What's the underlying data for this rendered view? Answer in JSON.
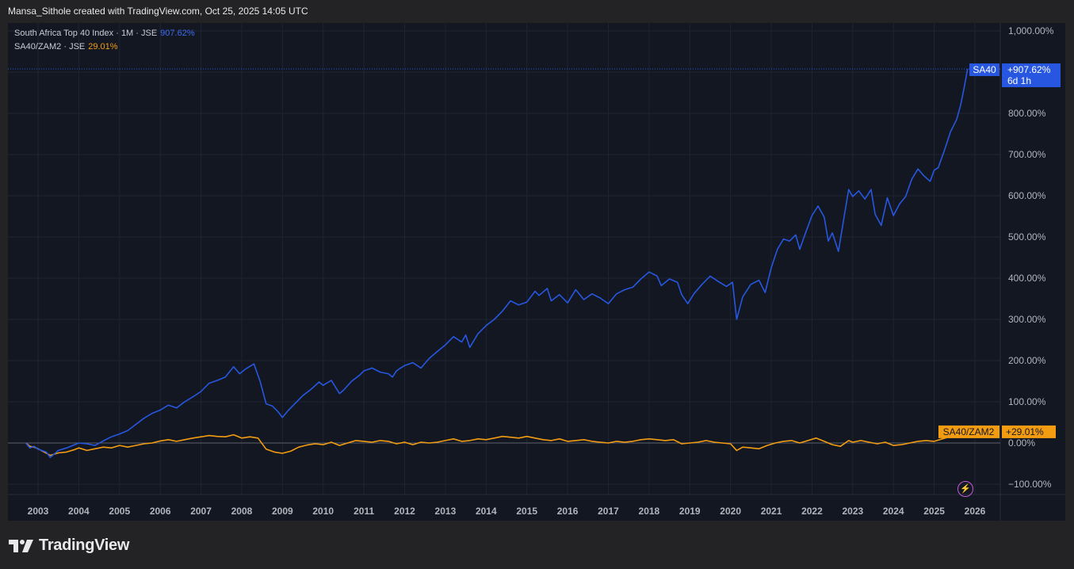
{
  "header": {
    "attribution": "Mansa_Sithole created with TradingView.com, Oct 25, 2025 14:05 UTC"
  },
  "legend": {
    "primary": {
      "name": "South Africa Top 40 Index · 1M · JSE",
      "value": "907.62%"
    },
    "secondary": {
      "name": "SA40/ZAM2 · JSE",
      "value": "29.01%"
    }
  },
  "badges": {
    "sa40": {
      "ticker": "SA40",
      "change": "+907.62%",
      "countdown": "6d 1h"
    },
    "ratio": {
      "ticker": "SA40/ZAM2",
      "change": "+29.01%"
    }
  },
  "footer": {
    "brand": "TradingView"
  },
  "colors": {
    "background": "#131722",
    "sa40": "#2757e0",
    "ratio": "#f39c12",
    "grid": "#232838"
  },
  "chart_data": {
    "type": "line",
    "y_axis_ticks": [
      "1,000.00%",
      "800.00%",
      "700.00%",
      "600.00%",
      "500.00%",
      "400.00%",
      "300.00%",
      "200.00%",
      "100.00%",
      "0.00%",
      "−100.00%"
    ],
    "y_axis_values": [
      1000,
      800,
      700,
      600,
      500,
      400,
      300,
      200,
      100,
      0,
      -100
    ],
    "x_axis_ticks": [
      "2003",
      "2004",
      "2005",
      "2006",
      "2007",
      "2008",
      "2009",
      "2010",
      "2011",
      "2012",
      "2013",
      "2014",
      "2015",
      "2016",
      "2017",
      "2018",
      "2019",
      "2020",
      "2021",
      "2022",
      "2023",
      "2024",
      "2025",
      "2026"
    ],
    "ylim": [
      -100,
      1000
    ],
    "xlim": [
      2002.65,
      2026.45
    ],
    "series": [
      {
        "name": "South Africa Top 40 Index",
        "color": "#2757e0",
        "points": [
          [
            2002.7,
            0
          ],
          [
            2002.8,
            -12
          ],
          [
            2002.9,
            -8
          ],
          [
            2003.0,
            -15
          ],
          [
            2003.2,
            -22
          ],
          [
            2003.3,
            -35
          ],
          [
            2003.5,
            -18
          ],
          [
            2003.7,
            -12
          ],
          [
            2003.9,
            -4
          ],
          [
            2004.0,
            0
          ],
          [
            2004.2,
            -2
          ],
          [
            2004.4,
            -6
          ],
          [
            2004.6,
            5
          ],
          [
            2004.8,
            15
          ],
          [
            2005.0,
            22
          ],
          [
            2005.2,
            30
          ],
          [
            2005.4,
            45
          ],
          [
            2005.6,
            60
          ],
          [
            2005.8,
            72
          ],
          [
            2006.0,
            80
          ],
          [
            2006.2,
            92
          ],
          [
            2006.4,
            85
          ],
          [
            2006.6,
            100
          ],
          [
            2006.8,
            112
          ],
          [
            2007.0,
            125
          ],
          [
            2007.2,
            145
          ],
          [
            2007.4,
            152
          ],
          [
            2007.6,
            160
          ],
          [
            2007.8,
            185
          ],
          [
            2007.95,
            168
          ],
          [
            2008.1,
            180
          ],
          [
            2008.3,
            192
          ],
          [
            2008.45,
            150
          ],
          [
            2008.6,
            95
          ],
          [
            2008.75,
            90
          ],
          [
            2008.9,
            75
          ],
          [
            2009.0,
            62
          ],
          [
            2009.15,
            80
          ],
          [
            2009.3,
            95
          ],
          [
            2009.5,
            115
          ],
          [
            2009.7,
            130
          ],
          [
            2009.9,
            148
          ],
          [
            2010.0,
            140
          ],
          [
            2010.2,
            152
          ],
          [
            2010.4,
            120
          ],
          [
            2010.5,
            128
          ],
          [
            2010.7,
            150
          ],
          [
            2010.9,
            165
          ],
          [
            2011.0,
            175
          ],
          [
            2011.2,
            182
          ],
          [
            2011.4,
            172
          ],
          [
            2011.6,
            168
          ],
          [
            2011.7,
            160
          ],
          [
            2011.8,
            175
          ],
          [
            2011.9,
            182
          ],
          [
            2012.0,
            188
          ],
          [
            2012.2,
            195
          ],
          [
            2012.4,
            182
          ],
          [
            2012.6,
            205
          ],
          [
            2012.8,
            222
          ],
          [
            2013.0,
            238
          ],
          [
            2013.2,
            258
          ],
          [
            2013.4,
            245
          ],
          [
            2013.5,
            262
          ],
          [
            2013.6,
            232
          ],
          [
            2013.8,
            265
          ],
          [
            2014.0,
            285
          ],
          [
            2014.2,
            300
          ],
          [
            2014.4,
            320
          ],
          [
            2014.6,
            345
          ],
          [
            2014.8,
            335
          ],
          [
            2015.0,
            342
          ],
          [
            2015.2,
            368
          ],
          [
            2015.3,
            358
          ],
          [
            2015.5,
            375
          ],
          [
            2015.6,
            345
          ],
          [
            2015.8,
            360
          ],
          [
            2016.0,
            340
          ],
          [
            2016.2,
            372
          ],
          [
            2016.4,
            348
          ],
          [
            2016.6,
            362
          ],
          [
            2016.8,
            352
          ],
          [
            2017.0,
            338
          ],
          [
            2017.2,
            362
          ],
          [
            2017.4,
            372
          ],
          [
            2017.6,
            378
          ],
          [
            2017.8,
            398
          ],
          [
            2018.0,
            415
          ],
          [
            2018.2,
            405
          ],
          [
            2018.3,
            382
          ],
          [
            2018.5,
            398
          ],
          [
            2018.7,
            390
          ],
          [
            2018.8,
            360
          ],
          [
            2018.95,
            338
          ],
          [
            2019.1,
            362
          ],
          [
            2019.3,
            385
          ],
          [
            2019.5,
            405
          ],
          [
            2019.7,
            392
          ],
          [
            2019.9,
            380
          ],
          [
            2020.05,
            390
          ],
          [
            2020.15,
            300
          ],
          [
            2020.3,
            355
          ],
          [
            2020.5,
            385
          ],
          [
            2020.7,
            395
          ],
          [
            2020.85,
            365
          ],
          [
            2021.0,
            425
          ],
          [
            2021.15,
            470
          ],
          [
            2021.3,
            495
          ],
          [
            2021.45,
            490
          ],
          [
            2021.6,
            505
          ],
          [
            2021.7,
            470
          ],
          [
            2021.85,
            512
          ],
          [
            2022.0,
            552
          ],
          [
            2022.15,
            575
          ],
          [
            2022.3,
            548
          ],
          [
            2022.4,
            490
          ],
          [
            2022.5,
            510
          ],
          [
            2022.65,
            465
          ],
          [
            2022.8,
            555
          ],
          [
            2022.9,
            615
          ],
          [
            2023.0,
            598
          ],
          [
            2023.15,
            612
          ],
          [
            2023.3,
            592
          ],
          [
            2023.45,
            615
          ],
          [
            2023.55,
            555
          ],
          [
            2023.7,
            528
          ],
          [
            2023.85,
            595
          ],
          [
            2024.0,
            552
          ],
          [
            2024.15,
            580
          ],
          [
            2024.3,
            598
          ],
          [
            2024.45,
            640
          ],
          [
            2024.6,
            665
          ],
          [
            2024.75,
            648
          ],
          [
            2024.9,
            635
          ],
          [
            2025.0,
            662
          ],
          [
            2025.1,
            668
          ],
          [
            2025.25,
            710
          ],
          [
            2025.4,
            755
          ],
          [
            2025.55,
            785
          ],
          [
            2025.65,
            820
          ],
          [
            2025.75,
            870
          ],
          [
            2025.82,
            907.62
          ]
        ]
      },
      {
        "name": "SA40/ZAM2",
        "color": "#f39c12",
        "points": [
          [
            2002.7,
            0
          ],
          [
            2002.8,
            -8
          ],
          [
            2002.9,
            -10
          ],
          [
            2003.0,
            -14
          ],
          [
            2003.15,
            -22
          ],
          [
            2003.3,
            -30
          ],
          [
            2003.5,
            -24
          ],
          [
            2003.7,
            -22
          ],
          [
            2003.9,
            -16
          ],
          [
            2004.0,
            -12
          ],
          [
            2004.2,
            -18
          ],
          [
            2004.4,
            -14
          ],
          [
            2004.6,
            -10
          ],
          [
            2004.8,
            -12
          ],
          [
            2005.0,
            -6
          ],
          [
            2005.2,
            -10
          ],
          [
            2005.4,
            -6
          ],
          [
            2005.6,
            -2
          ],
          [
            2005.8,
            0
          ],
          [
            2006.0,
            5
          ],
          [
            2006.2,
            8
          ],
          [
            2006.4,
            4
          ],
          [
            2006.6,
            8
          ],
          [
            2006.8,
            12
          ],
          [
            2007.0,
            15
          ],
          [
            2007.2,
            18
          ],
          [
            2007.4,
            16
          ],
          [
            2007.6,
            15
          ],
          [
            2007.8,
            20
          ],
          [
            2008.0,
            12
          ],
          [
            2008.2,
            15
          ],
          [
            2008.4,
            12
          ],
          [
            2008.6,
            -15
          ],
          [
            2008.8,
            -22
          ],
          [
            2009.0,
            -25
          ],
          [
            2009.2,
            -20
          ],
          [
            2009.4,
            -10
          ],
          [
            2009.6,
            -5
          ],
          [
            2009.8,
            -2
          ],
          [
            2010.0,
            -4
          ],
          [
            2010.2,
            2
          ],
          [
            2010.4,
            -6
          ],
          [
            2010.6,
            0
          ],
          [
            2010.8,
            6
          ],
          [
            2011.0,
            4
          ],
          [
            2011.2,
            2
          ],
          [
            2011.4,
            6
          ],
          [
            2011.6,
            4
          ],
          [
            2011.8,
            -2
          ],
          [
            2012.0,
            2
          ],
          [
            2012.2,
            -4
          ],
          [
            2012.4,
            2
          ],
          [
            2012.6,
            0
          ],
          [
            2012.8,
            2
          ],
          [
            2013.0,
            6
          ],
          [
            2013.2,
            10
          ],
          [
            2013.4,
            4
          ],
          [
            2013.6,
            6
          ],
          [
            2013.8,
            10
          ],
          [
            2014.0,
            8
          ],
          [
            2014.2,
            12
          ],
          [
            2014.4,
            16
          ],
          [
            2014.6,
            14
          ],
          [
            2014.8,
            12
          ],
          [
            2015.0,
            16
          ],
          [
            2015.2,
            12
          ],
          [
            2015.4,
            8
          ],
          [
            2015.6,
            6
          ],
          [
            2015.8,
            10
          ],
          [
            2016.0,
            4
          ],
          [
            2016.2,
            6
          ],
          [
            2016.4,
            8
          ],
          [
            2016.6,
            4
          ],
          [
            2016.8,
            2
          ],
          [
            2017.0,
            0
          ],
          [
            2017.2,
            4
          ],
          [
            2017.4,
            2
          ],
          [
            2017.6,
            4
          ],
          [
            2017.8,
            8
          ],
          [
            2018.0,
            10
          ],
          [
            2018.2,
            8
          ],
          [
            2018.4,
            6
          ],
          [
            2018.6,
            8
          ],
          [
            2018.8,
            -2
          ],
          [
            2019.0,
            0
          ],
          [
            2019.2,
            2
          ],
          [
            2019.4,
            6
          ],
          [
            2019.6,
            2
          ],
          [
            2019.8,
            0
          ],
          [
            2020.0,
            -2
          ],
          [
            2020.15,
            -18
          ],
          [
            2020.3,
            -10
          ],
          [
            2020.5,
            -12
          ],
          [
            2020.7,
            -14
          ],
          [
            2020.9,
            -6
          ],
          [
            2021.1,
            0
          ],
          [
            2021.3,
            4
          ],
          [
            2021.5,
            6
          ],
          [
            2021.7,
            0
          ],
          [
            2021.9,
            6
          ],
          [
            2022.1,
            12
          ],
          [
            2022.3,
            4
          ],
          [
            2022.5,
            -4
          ],
          [
            2022.7,
            -8
          ],
          [
            2022.9,
            6
          ],
          [
            2023.0,
            2
          ],
          [
            2023.2,
            6
          ],
          [
            2023.4,
            2
          ],
          [
            2023.6,
            -2
          ],
          [
            2023.8,
            2
          ],
          [
            2024.0,
            -6
          ],
          [
            2024.2,
            -4
          ],
          [
            2024.4,
            0
          ],
          [
            2024.6,
            4
          ],
          [
            2024.8,
            6
          ],
          [
            2025.0,
            4
          ],
          [
            2025.2,
            10
          ],
          [
            2025.4,
            16
          ],
          [
            2025.6,
            22
          ],
          [
            2025.82,
            29.01
          ]
        ]
      }
    ]
  }
}
